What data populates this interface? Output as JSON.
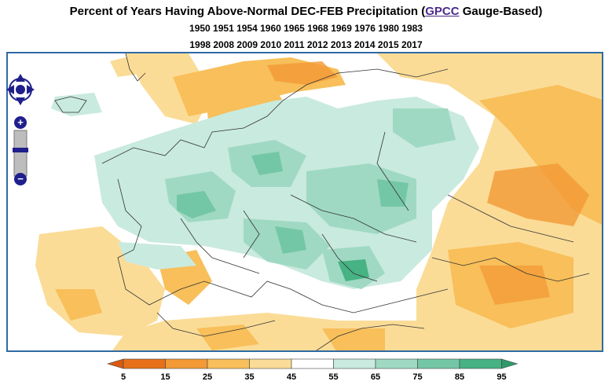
{
  "title": {
    "prefix": "Percent of Years Having Above-Normal DEC-FEB Precipitation (",
    "link": "GPCC",
    "suffix": " Gauge-Based)",
    "years_line1": "1950 1951 1954 1960 1965 1968 1969 1976 1980 1983",
    "years_line2": "1998 2008 2009 2010 2011 2012 2013 2014 2015 2017"
  },
  "colors": {
    "c5": "#e8701a",
    "c15": "#f39a36",
    "c25": "#f8bf5a",
    "c35": "#fbdc97",
    "c45": "#ffffff",
    "c55": "#c9eadf",
    "c65": "#9fd9c3",
    "c75": "#74c7a6",
    "c85": "#47b283",
    "frame": "#2f6aa3",
    "nav": "#1f1f8c"
  },
  "legend": {
    "labels": [
      "5",
      "15",
      "25",
      "35",
      "45",
      "55",
      "65",
      "75",
      "85",
      "95"
    ]
  },
  "nav": {
    "pan_icon": "pan-arrows-icon",
    "zoom_in_label": "+",
    "zoom_out_label": "−"
  }
}
